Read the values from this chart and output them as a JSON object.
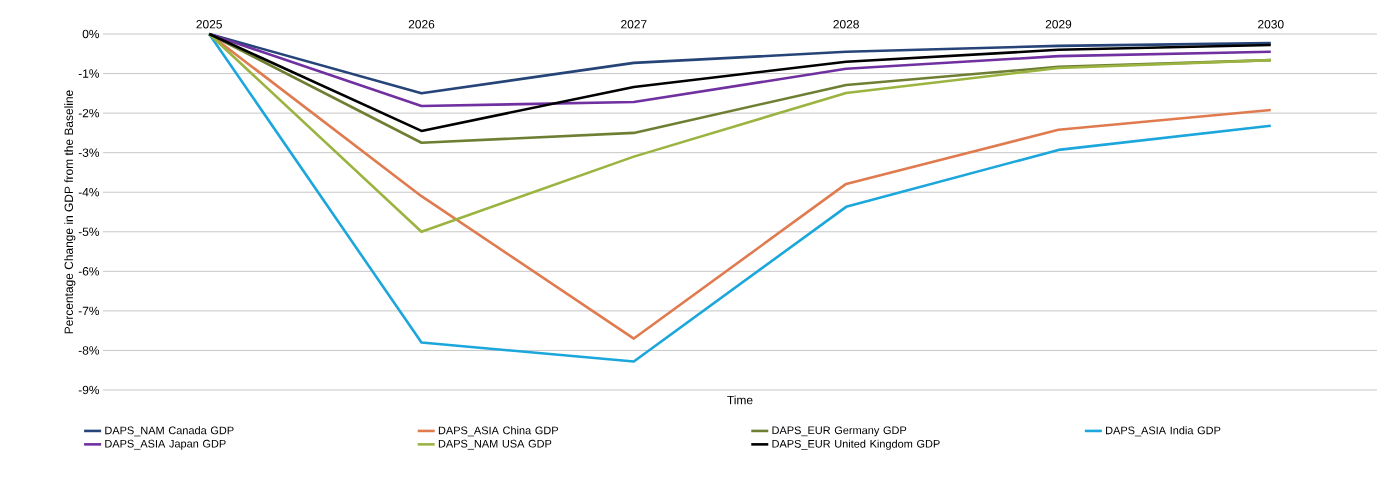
{
  "chart_data": {
    "type": "line",
    "xlabel": "Time",
    "ylabel": "Percentage Change in GDP from the Baseline",
    "categories": [
      "2025",
      "2026",
      "2027",
      "2028",
      "2029",
      "2030"
    ],
    "series": [
      {
        "name": "DAPS_NAM Canada GDP",
        "color": "#264478",
        "values": [
          0,
          -1.5,
          -0.73,
          -0.45,
          -0.3,
          -0.23
        ]
      },
      {
        "name": "DAPS_ASIA China GDP",
        "color": "#e07b4f",
        "values": [
          0,
          -4.1,
          -7.7,
          -3.79,
          -2.42,
          -1.92
        ]
      },
      {
        "name": "DAPS_EUR Germany GDP",
        "color": "#6e7f33",
        "values": [
          0,
          -2.75,
          -2.5,
          -1.29,
          -0.83,
          -0.66
        ]
      },
      {
        "name": "DAPS_ASIA India GDP",
        "color": "#1ba6dc",
        "values": [
          0,
          -7.8,
          -8.28,
          -4.37,
          -2.93,
          -2.32
        ]
      },
      {
        "name": "DAPS_ASIA Japan GDP",
        "color": "#7030a0",
        "values": [
          0,
          -1.82,
          -1.72,
          -0.88,
          -0.56,
          -0.45
        ]
      },
      {
        "name": "DAPS_NAM USA GDP",
        "color": "#9bb441",
        "values": [
          0,
          -5.0,
          -3.1,
          -1.49,
          -0.86,
          -0.66
        ]
      },
      {
        "name": "DAPS_EUR United Kingdom GDP",
        "color": "#000000",
        "values": [
          0,
          -2.45,
          -1.34,
          -0.7,
          -0.4,
          -0.28
        ]
      }
    ],
    "ylim": [
      -9,
      0
    ],
    "yticks": [
      {
        "value": 0,
        "label": "0%"
      },
      {
        "value": -1,
        "label": "-1%"
      },
      {
        "value": -2,
        "label": "-2%"
      },
      {
        "value": -3,
        "label": "-3%"
      },
      {
        "value": -4,
        "label": "-4%"
      },
      {
        "value": -5,
        "label": "-5%"
      },
      {
        "value": -6,
        "label": "-6%"
      },
      {
        "value": -7,
        "label": "-7%"
      },
      {
        "value": -8,
        "label": "-8%"
      },
      {
        "value": -9,
        "label": "-9%"
      }
    ],
    "grid": "y",
    "legend": "bottom"
  }
}
